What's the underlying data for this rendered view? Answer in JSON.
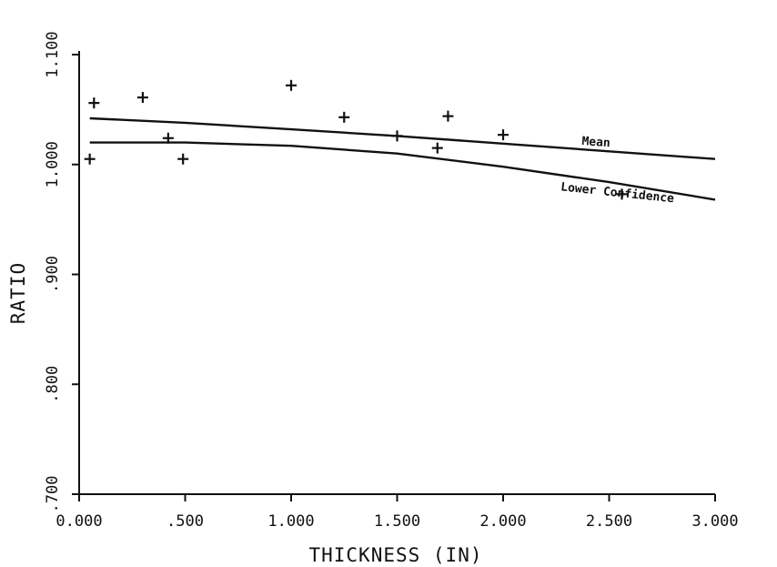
{
  "chart_data": {
    "type": "scatter",
    "title": "",
    "xlabel": "THICKNESS (IN)",
    "ylabel": "RATIO",
    "xlim": [
      0,
      3.0
    ],
    "ylim": [
      0.7,
      1.1
    ],
    "x_tick_labels": [
      "0.000",
      ".500",
      "1.000",
      "1.500",
      "2.000",
      "2.500",
      "3.000"
    ],
    "x_tick_values": [
      0,
      0.5,
      1.0,
      1.5,
      2.0,
      2.5,
      3.0
    ],
    "y_tick_labels": [
      ".700",
      ".800",
      ".900",
      "1.000",
      "1.100"
    ],
    "y_tick_values": [
      0.7,
      0.8,
      0.9,
      1.0,
      1.1
    ],
    "grid": false,
    "points": [
      {
        "x": 0.05,
        "y": 1.005
      },
      {
        "x": 0.07,
        "y": 1.056
      },
      {
        "x": 0.3,
        "y": 1.061
      },
      {
        "x": 0.42,
        "y": 1.024
      },
      {
        "x": 0.49,
        "y": 1.005
      },
      {
        "x": 1.0,
        "y": 1.072
      },
      {
        "x": 1.25,
        "y": 1.043
      },
      {
        "x": 1.5,
        "y": 1.026
      },
      {
        "x": 1.69,
        "y": 1.015
      },
      {
        "x": 1.74,
        "y": 1.044
      },
      {
        "x": 2.0,
        "y": 1.027
      },
      {
        "x": 2.56,
        "y": 0.973
      }
    ],
    "series": [
      {
        "label": "Mean",
        "x": [
          0.05,
          0.5,
          1.0,
          1.5,
          2.0,
          2.5,
          3.0
        ],
        "y": [
          1.042,
          1.038,
          1.032,
          1.026,
          1.019,
          1.012,
          1.005
        ]
      },
      {
        "label": "Lower Confidence",
        "x": [
          0.05,
          0.5,
          1.0,
          1.5,
          2.0,
          2.5,
          3.0
        ],
        "y": [
          1.02,
          1.02,
          1.017,
          1.01,
          0.998,
          0.984,
          0.968
        ]
      }
    ],
    "annotations": [
      {
        "text": "Mean",
        "series": 0
      },
      {
        "text": "Lower Confidence",
        "series": 1
      }
    ]
  }
}
